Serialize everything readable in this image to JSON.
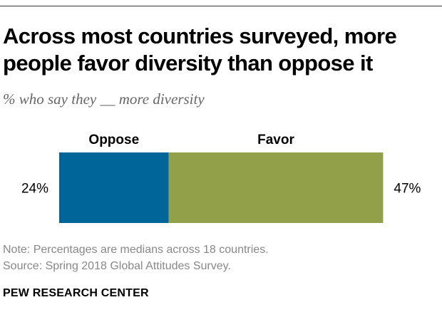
{
  "title": {
    "line1": "Across most countries surveyed, more",
    "line2": "people favor diversity than oppose it"
  },
  "subtitle": "% who say they __ more diversity",
  "colors": {
    "oppose": "#006699",
    "favor": "#93a04a"
  },
  "chart_data": {
    "type": "bar",
    "orientation": "horizontal-stacked",
    "unit": "%",
    "series": [
      {
        "name": "Oppose",
        "value": 24,
        "label": "24%"
      },
      {
        "name": "Favor",
        "value": 47,
        "label": "47%"
      }
    ],
    "legend_placement": "top",
    "grid": false
  },
  "notes": {
    "note": "Note: Percentages are medians across 18 countries.",
    "source": "Source: Spring 2018 Global Attitudes Survey."
  },
  "brand": "PEW RESEARCH CENTER"
}
